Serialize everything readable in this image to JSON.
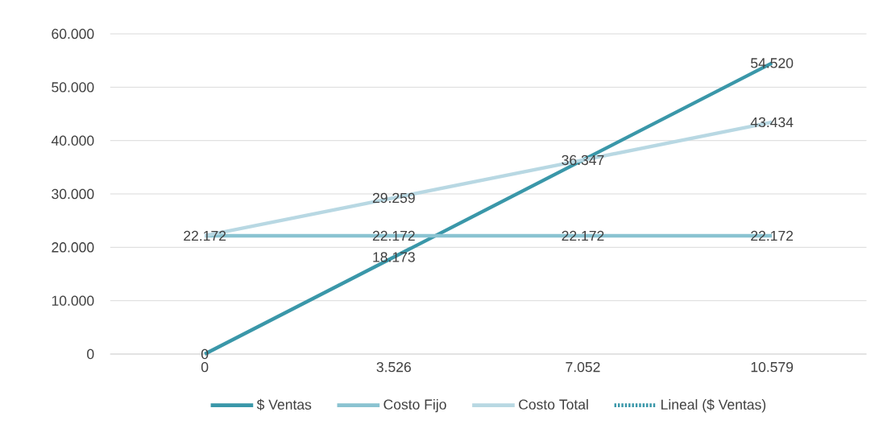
{
  "chart_data": {
    "type": "line",
    "categories": [
      "0",
      "3.526",
      "7.052",
      "10.579"
    ],
    "series": [
      {
        "name": "$ Ventas",
        "color": "#3a97a9",
        "values": [
          0,
          18173,
          36347,
          54520
        ],
        "value_labels": [
          "0",
          "18.173",
          null,
          "54.520"
        ]
      },
      {
        "name": "Costo Fijo",
        "color": "#8ac3d1",
        "values": [
          22172,
          22172,
          22172,
          22172
        ],
        "value_labels": [
          "22.172",
          "22.172",
          "22.172",
          "22.172"
        ]
      },
      {
        "name": "Costo Total",
        "color": "#b8d8e3",
        "values": [
          22172,
          29259,
          36347,
          43434
        ],
        "value_labels": [
          null,
          "29.259",
          "36.347",
          "43.434"
        ]
      },
      {
        "name": "Lineal ($ Ventas)",
        "color": "#3a97a9",
        "values": [
          null,
          null,
          null,
          null
        ],
        "line_style": "dotted"
      }
    ],
    "ylim": [
      0,
      60000
    ],
    "yticks": [
      {
        "value": 0,
        "label": "0"
      },
      {
        "value": 10000,
        "label": "10.000"
      },
      {
        "value": 20000,
        "label": "20.000"
      },
      {
        "value": 30000,
        "label": "30.000"
      },
      {
        "value": 40000,
        "label": "40.000"
      },
      {
        "value": 50000,
        "label": "50.000"
      },
      {
        "value": 60000,
        "label": "60.000"
      }
    ],
    "grid": "y",
    "legend": "bottom"
  }
}
